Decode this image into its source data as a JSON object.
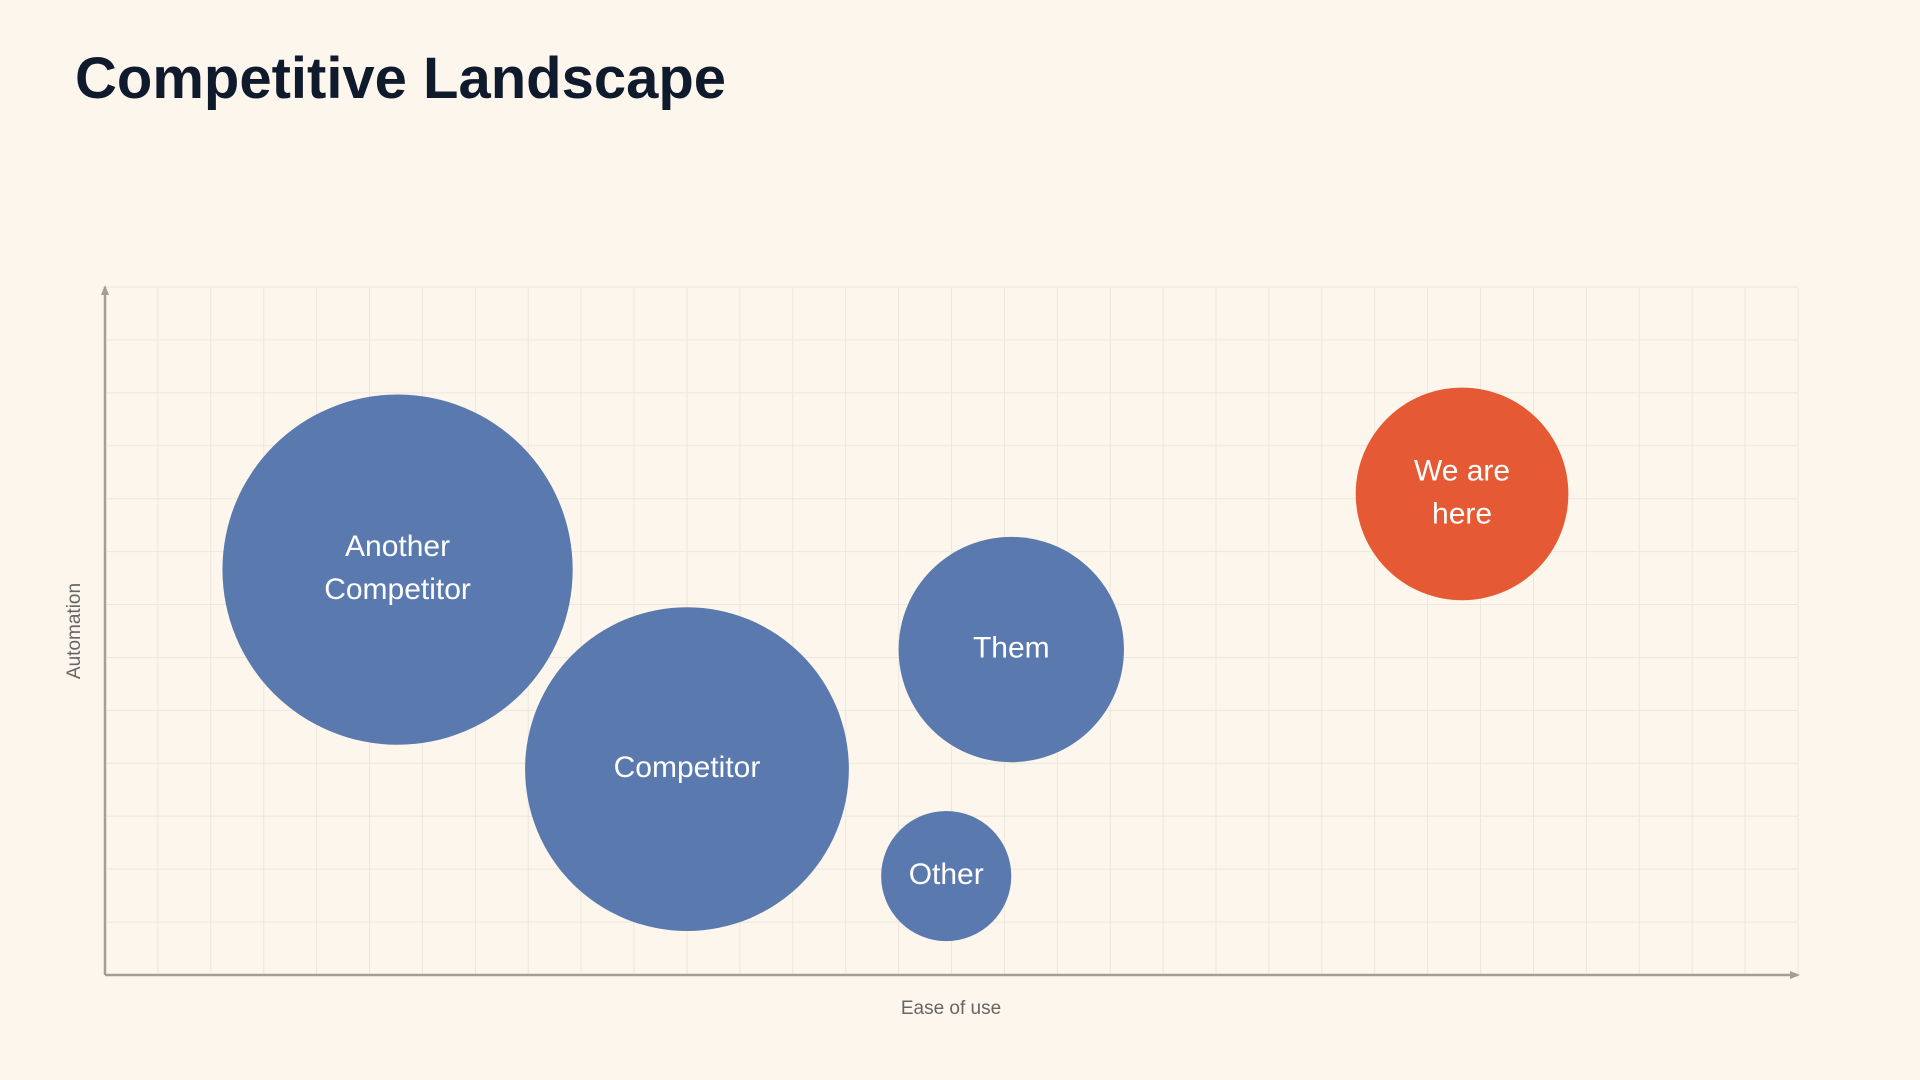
{
  "chart_data": {
    "type": "bubble",
    "title": "Competitive Landscape",
    "x_label": "Ease of use",
    "y_label": "Automation",
    "labels": [
      [
        "Another",
        "Competitor"
      ],
      [
        "Competitor"
      ],
      [
        "Them"
      ],
      [
        "Other"
      ],
      [
        "We are",
        "here"
      ]
    ],
    "x": [
      5.53,
      11.0,
      17.13,
      15.9,
      25.65
    ],
    "y": [
      7.66,
      3.89,
      6.15,
      1.87,
      9.09
    ],
    "sizes": [
      3.31,
      3.06,
      2.13,
      1.23,
      2.01
    ],
    "colors": [
      "#5a7aaf",
      "#5a7aaf",
      "#5a7aaf",
      "#5a7aaf",
      "#e55a35"
    ],
    "xlim": [
      0,
      32
    ],
    "ylim": [
      0,
      13
    ],
    "xticks": [
      0,
      1,
      2,
      3,
      4,
      5,
      6,
      7,
      8,
      9,
      10,
      11,
      12,
      13,
      14,
      15,
      16,
      17,
      18,
      19,
      20,
      21,
      22,
      23,
      24,
      25,
      26,
      27,
      28,
      29,
      30,
      31,
      32
    ],
    "yticks": [
      0,
      1,
      2,
      3,
      4,
      5,
      6,
      7,
      8,
      9,
      10,
      11,
      12,
      13
    ],
    "grid": true
  }
}
